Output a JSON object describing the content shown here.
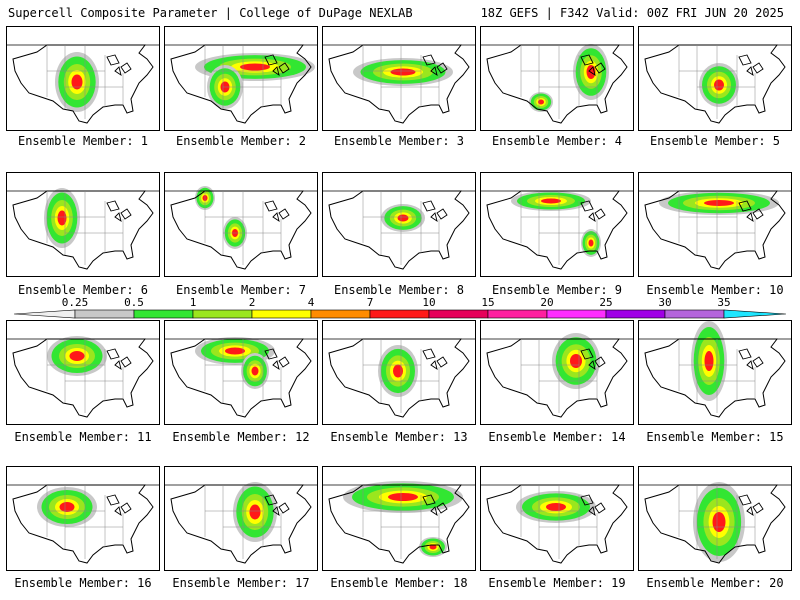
{
  "header": {
    "title": "Supercell Composite Parameter | College of DuPage NEXLAB",
    "run_info": "18Z GEFS | F342 Valid: 00Z FRI JUN 20 2025"
  },
  "colorbar": {
    "labels": [
      "0.25",
      "0.5",
      "1",
      "2",
      "4",
      "7",
      "10",
      "15",
      "20",
      "25",
      "30",
      "35"
    ],
    "colors": [
      "#c8c8c8",
      "#32e632",
      "#9be61e",
      "#ffff00",
      "#ff8c00",
      "#ff1919",
      "#e6005a",
      "#ff1ea0",
      "#ff2dff",
      "#a000e6",
      "#b464dc",
      "#1ee6ff"
    ]
  },
  "members": [
    {
      "caption": "Ensemble Member: 1"
    },
    {
      "caption": "Ensemble Member: 2"
    },
    {
      "caption": "Ensemble Member: 3"
    },
    {
      "caption": "Ensemble Member: 4"
    },
    {
      "caption": "Ensemble Member: 5"
    },
    {
      "caption": "Ensemble Member: 6"
    },
    {
      "caption": "Ensemble Member: 7"
    },
    {
      "caption": "Ensemble Member: 8"
    },
    {
      "caption": "Ensemble Member: 9"
    },
    {
      "caption": "Ensemble Member: 10"
    },
    {
      "caption": "Ensemble Member: 11"
    },
    {
      "caption": "Ensemble Member: 12"
    },
    {
      "caption": "Ensemble Member: 13"
    },
    {
      "caption": "Ensemble Member: 14"
    },
    {
      "caption": "Ensemble Member: 15"
    },
    {
      "caption": "Ensemble Member: 16"
    },
    {
      "caption": "Ensemble Member: 17"
    },
    {
      "caption": "Ensemble Member: 18"
    },
    {
      "caption": "Ensemble Member: 19"
    },
    {
      "caption": "Ensemble Member: 20"
    }
  ]
}
